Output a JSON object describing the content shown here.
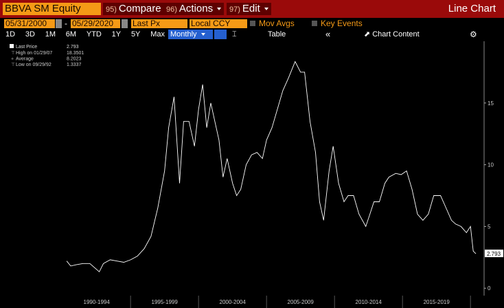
{
  "header": {
    "security": "BBVA SM Equity",
    "menu": [
      {
        "num": "95)",
        "label": "Compare"
      },
      {
        "num": "96)",
        "label": "Actions"
      },
      {
        "num": "97)",
        "label": "Edit"
      }
    ],
    "chart_kind": "Line Chart"
  },
  "controls": {
    "start_date": "05/31/2000",
    "separator": "-",
    "end_date": "05/29/2020",
    "field": "Last Px",
    "currency": "Local CCY",
    "options": [
      "Mov Avgs",
      "Key Events"
    ]
  },
  "toolbar": {
    "periods": [
      "1D",
      "3D",
      "1M",
      "6M",
      "YTD",
      "1Y",
      "5Y",
      "Max"
    ],
    "frequency": "Monthly",
    "view": "Table",
    "collapse": "«",
    "content": "Chart Content"
  },
  "chart_data": {
    "type": "line",
    "x": [
      1990.3,
      1990.6,
      1991,
      1991.5,
      1992,
      1992.7,
      1993,
      1993.5,
      1994,
      1994.5,
      1995,
      1995.5,
      1996,
      1996.5,
      1997,
      1997.5,
      1997.8,
      1998.2,
      1998.6,
      1998.9,
      1999.3,
      1999.7,
      2000,
      2000.3,
      2000.6,
      2000.9,
      2001.2,
      2001.5,
      2001.8,
      2002.1,
      2002.5,
      2002.8,
      2003.1,
      2003.5,
      2003.9,
      2004.3,
      2004.7,
      2005,
      2005.4,
      2005.8,
      2006.2,
      2006.6,
      2007.1,
      2007.5,
      2007.8,
      2008.2,
      2008.6,
      2008.9,
      2009.2,
      2009.6,
      2009.9,
      2010.3,
      2010.7,
      2011,
      2011.4,
      2011.8,
      2012.3,
      2012.6,
      2012.9,
      2013.3,
      2013.7,
      2014,
      2014.5,
      2014.9,
      2015.3,
      2015.7,
      2016.1,
      2016.5,
      2016.9,
      2017.3,
      2017.8,
      2018.2,
      2018.6,
      2018.9,
      2019.3,
      2019.7,
      2020,
      2020.2,
      2020.4
    ],
    "series": [
      {
        "name": "Last Price",
        "color": "#ffffff",
        "values": [
          2.2,
          1.8,
          1.9,
          2.0,
          2.0,
          1.3337,
          2.0,
          2.3,
          2.2,
          2.1,
          2.3,
          2.6,
          3.2,
          4.2,
          6.5,
          9.5,
          13,
          15.5,
          8.5,
          13.5,
          13.5,
          11.5,
          14.5,
          16.5,
          13,
          15,
          13.5,
          12,
          9,
          10.5,
          8.5,
          7.5,
          8,
          10,
          10.8,
          11,
          10.5,
          12,
          13,
          14.5,
          16,
          17,
          18.3501,
          17.5,
          17.5,
          13.5,
          11,
          7,
          5.5,
          9.5,
          11.5,
          8.5,
          7,
          7.5,
          7.5,
          6,
          5,
          6,
          7,
          7,
          8.5,
          9,
          9.3,
          9.2,
          9.5,
          8,
          6,
          5.5,
          6,
          7.5,
          7.5,
          6.5,
          5.5,
          5.2,
          5,
          4.5,
          5,
          3.0,
          2.793
        ]
      }
    ],
    "legend_stats": [
      {
        "label": "High on 01/29/07",
        "value": 18.3501
      },
      {
        "label": "Average",
        "value": 8.2023
      },
      {
        "label": "Low on 09/29/92",
        "value": 1.3337
      }
    ],
    "xlim": [
      1985.8,
      2021.0
    ],
    "xticks": [
      {
        "value": 1992.5,
        "label": "1990-1994"
      },
      {
        "value": 1997.5,
        "label": "1995-1999"
      },
      {
        "value": 2002.5,
        "label": "2000-2004"
      },
      {
        "value": 2007.5,
        "label": "2005-2009"
      },
      {
        "value": 2012.5,
        "label": "2010-2014"
      },
      {
        "value": 2017.5,
        "label": "2015-2019"
      }
    ],
    "ylim": [
      -0.6,
      20
    ],
    "yticks": [
      0,
      5,
      10,
      15
    ]
  }
}
